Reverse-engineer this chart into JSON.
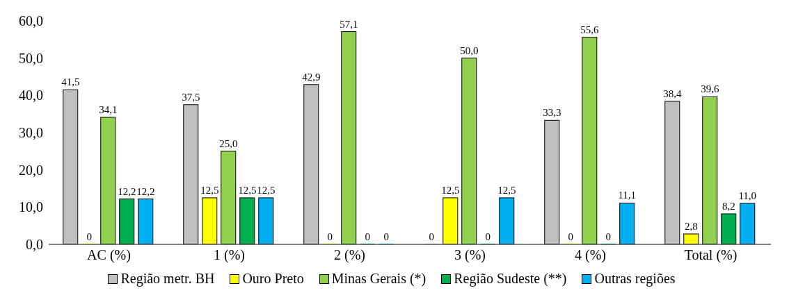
{
  "chart_data": {
    "type": "bar",
    "categories": [
      "AC (%)",
      "1 (%)",
      "2 (%)",
      "3 (%)",
      "4 (%)",
      "Total (%)"
    ],
    "series": [
      {
        "name": "Região metr. BH",
        "color": "#bfbfbf",
        "values": [
          41.5,
          37.5,
          42.9,
          0,
          33.3,
          38.4
        ],
        "value_labels": [
          "41,5",
          "37,5",
          "42,9",
          "0",
          "33,3",
          "38,4"
        ]
      },
      {
        "name": "Ouro Preto",
        "color": "#ffff00",
        "values": [
          0,
          12.5,
          0,
          12.5,
          0,
          2.8
        ],
        "value_labels": [
          "0",
          "12,5",
          "0",
          "12,5",
          "0",
          "2,8"
        ]
      },
      {
        "name": "Minas Gerais (*)",
        "color": "#92d050",
        "values": [
          34.1,
          25.0,
          57.1,
          50.0,
          55.6,
          39.6
        ],
        "value_labels": [
          "34,1",
          "25,0",
          "57,1",
          "50,0",
          "55,6",
          "39,6"
        ]
      },
      {
        "name": "Região Sudeste (**)",
        "color": "#00b050",
        "values": [
          12.2,
          12.5,
          0,
          0,
          0,
          8.2
        ],
        "value_labels": [
          "12,2",
          "12,5",
          "0",
          "0",
          "0",
          "8,2"
        ]
      },
      {
        "name": "Outras regiões",
        "color": "#00b0f0",
        "values": [
          12.2,
          12.5,
          0,
          12.5,
          11.1,
          11.0
        ],
        "value_labels": [
          "12,2",
          "12,5",
          "0",
          "12,5",
          "11,1",
          "11,0"
        ]
      }
    ],
    "ylim": [
      0,
      60
    ],
    "yticks": [
      {
        "value": 0,
        "label": "0,0"
      },
      {
        "value": 10,
        "label": "10,0"
      },
      {
        "value": 20,
        "label": "20,0"
      },
      {
        "value": 30,
        "label": "30,0"
      },
      {
        "value": 40,
        "label": "40,0"
      },
      {
        "value": 50,
        "label": "50,0"
      },
      {
        "value": 60,
        "label": "60,0"
      }
    ],
    "grid": false,
    "legend": "bottom"
  }
}
